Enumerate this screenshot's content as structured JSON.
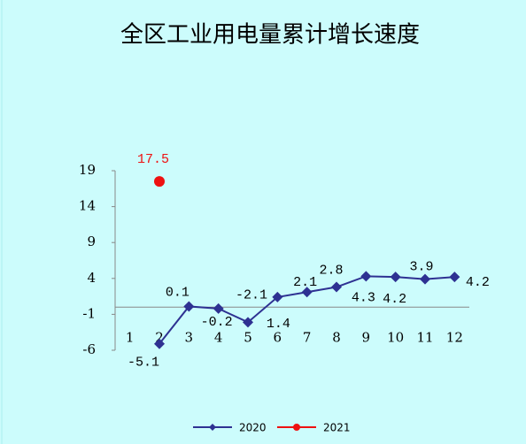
{
  "chart_data": {
    "type": "line",
    "title": "全区工业用电量累计增长速度",
    "categories": [
      "1",
      "2",
      "3",
      "4",
      "5",
      "6",
      "7",
      "8",
      "9",
      "10",
      "11",
      "12"
    ],
    "series": [
      {
        "name": "2020",
        "color": "#2e3192",
        "values": [
          null,
          -5.1,
          0.1,
          -0.2,
          -2.1,
          1.4,
          2.1,
          2.8,
          4.3,
          4.2,
          3.9,
          4.2
        ]
      },
      {
        "name": "2021",
        "color": "#ee1111",
        "values": [
          null,
          17.5,
          null,
          null,
          null,
          null,
          null,
          null,
          null,
          null,
          null,
          null
        ]
      }
    ],
    "ylim": [
      -6,
      19
    ],
    "yticks": [
      -6,
      -1,
      4,
      9,
      14,
      19
    ],
    "grid": false,
    "legend": "bottom"
  }
}
